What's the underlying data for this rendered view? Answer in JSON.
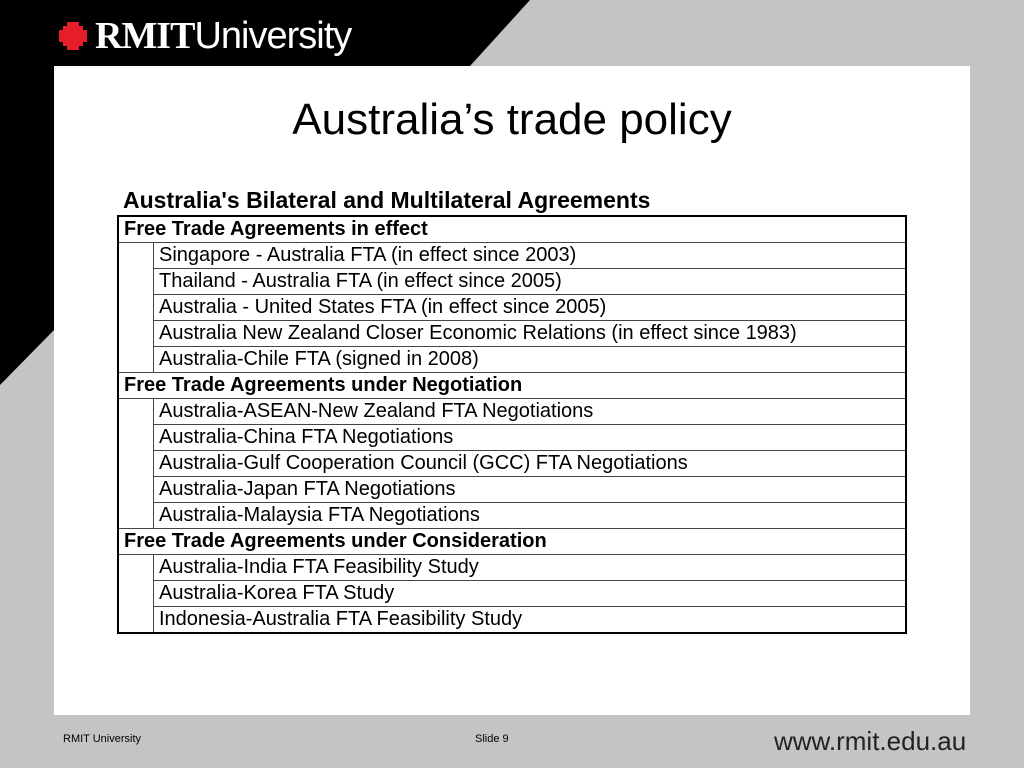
{
  "header": {
    "logo_bold": "RMIT",
    "logo_light": "University"
  },
  "slide": {
    "title": "Australia’s trade policy",
    "table_caption": "Australia's Bilateral and Multilateral Agreements",
    "sections": [
      {
        "heading": "Free Trade Agreements in effect",
        "items": [
          "Singapore - Australia FTA (in effect since 2003)",
          "Thailand - Australia FTA (in effect since 2005)",
          "Australia - United States FTA (in effect since 2005)",
          "Australia New Zealand Closer Economic Relations (in effect since 1983)",
          "Australia-Chile FTA (signed in 2008)"
        ]
      },
      {
        "heading": "Free Trade Agreements under Negotiation",
        "items": [
          "Australia-ASEAN-New Zealand FTA Negotiations",
          "Australia-China FTA Negotiations",
          "Australia-Gulf Cooperation Council (GCC) FTA Negotiations",
          "Australia-Japan FTA Negotiations",
          "Australia-Malaysia FTA Negotiations"
        ]
      },
      {
        "heading": "Free Trade Agreements under Consideration",
        "items": [
          "Australia-India FTA Feasibility Study",
          "Australia-Korea FTA Study",
          "Indonesia-Australia FTA Feasibility Study"
        ]
      }
    ]
  },
  "footer": {
    "org": "RMIT University",
    "slide_number": "Slide 9",
    "url": "www.rmit.edu.au"
  },
  "colors": {
    "background": "#c4c4c4",
    "header_black": "#000000",
    "brand_red": "#e61e2a",
    "panel": "#ffffff"
  }
}
